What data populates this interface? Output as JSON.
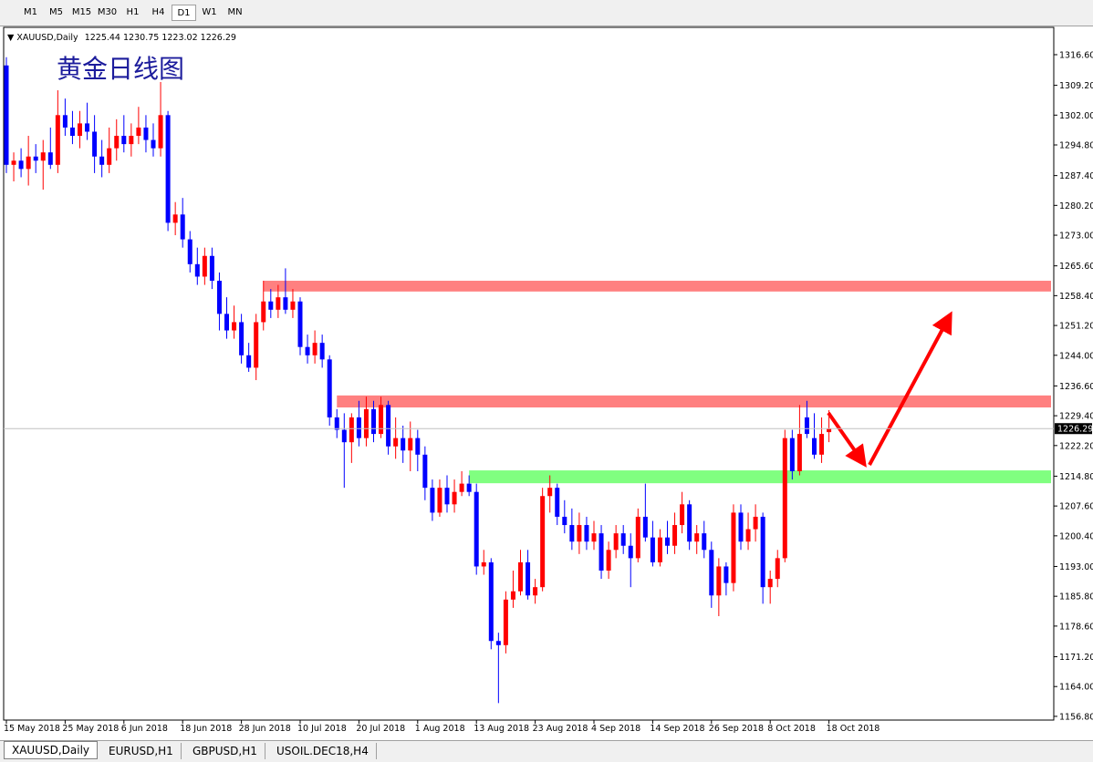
{
  "toolbar": {
    "timeframes": [
      "M1",
      "M5",
      "M15",
      "M30",
      "H1",
      "H4",
      "D1",
      "W1",
      "MN"
    ],
    "selected": 6
  },
  "tabs": {
    "items": [
      "XAUUSD,Daily",
      "EURUSD,H1",
      "GBPUSD,H1",
      "USOIL.DEC18,H4"
    ],
    "selected": 0
  },
  "chart_data": {
    "type": "candlestick",
    "title": "XAUUSD,Daily",
    "annotation": "黄金日线图",
    "up_color": "#ff0000",
    "down_color": "#0000ff",
    "ylim": [
      1155.9,
      1323.2
    ],
    "yticks": [
      {
        "value": 1316.6,
        "label": "1316.60"
      },
      {
        "value": 1309.2,
        "label": "1309.20"
      },
      {
        "value": 1302,
        "label": "1302.00"
      },
      {
        "value": 1294.8,
        "label": "1294.80"
      },
      {
        "value": 1287.4,
        "label": "1287.40"
      },
      {
        "value": 1280.2,
        "label": "1280.20"
      },
      {
        "value": 1273,
        "label": "1273.00"
      },
      {
        "value": 1265.6,
        "label": "1265.60"
      },
      {
        "value": 1258.4,
        "label": "1258.40"
      },
      {
        "value": 1251.2,
        "label": "1251.20"
      },
      {
        "value": 1244,
        "label": "1244.00"
      },
      {
        "value": 1236.6,
        "label": "1236.60"
      },
      {
        "value": 1229.4,
        "label": "1229.40"
      },
      {
        "value": 1222.2,
        "label": "1222.20"
      },
      {
        "value": 1214.8,
        "label": "1214.80"
      },
      {
        "value": 1207.6,
        "label": "1207.60"
      },
      {
        "value": 1200.4,
        "label": "1200.40"
      },
      {
        "value": 1193,
        "label": "1193.00"
      },
      {
        "value": 1185.8,
        "label": "1185.80"
      },
      {
        "value": 1178.6,
        "label": "1178.60"
      },
      {
        "value": 1171.2,
        "label": "1171.20"
      },
      {
        "value": 1164,
        "label": "1164.00"
      },
      {
        "value": 1156.8,
        "label": "1156.80"
      }
    ],
    "categories": [
      "15 May 2018",
      null,
      null,
      null,
      null,
      null,
      null,
      null,
      "25 May 2018",
      null,
      null,
      null,
      null,
      null,
      null,
      null,
      "6 Jun 2018",
      null,
      null,
      null,
      null,
      null,
      null,
      null,
      "18 Jun 2018",
      null,
      null,
      null,
      null,
      null,
      null,
      null,
      "28 Jun 2018",
      null,
      null,
      null,
      null,
      null,
      null,
      null,
      "10 Jul 2018",
      null,
      null,
      null,
      null,
      null,
      null,
      null,
      "20 Jul 2018",
      null,
      null,
      null,
      null,
      null,
      null,
      null,
      "1 Aug 2018",
      null,
      null,
      null,
      null,
      null,
      null,
      null,
      "13 Aug 2018",
      null,
      null,
      null,
      null,
      null,
      null,
      null,
      "23 Aug 2018",
      null,
      null,
      null,
      null,
      null,
      null,
      null,
      "4 Sep 2018",
      null,
      null,
      null,
      null,
      null,
      null,
      null,
      "14 Sep 2018",
      null,
      null,
      null,
      null,
      null,
      null,
      null,
      "26 Sep 2018",
      null,
      null,
      null,
      null,
      null,
      null,
      null,
      "8 Oct 2018",
      null,
      null,
      null,
      null,
      null,
      null,
      null,
      "18 Oct 2018"
    ],
    "open": [
      1314,
      1290,
      1291,
      1289,
      1292,
      1291,
      1293,
      1290,
      1302,
      1299,
      1297,
      1300,
      1298,
      1292,
      1290,
      1294,
      1297,
      1295,
      1297,
      1299,
      1296,
      1294,
      1302,
      1276,
      1278,
      1272,
      1266,
      1263,
      1268,
      1262,
      1254,
      1250,
      1252,
      1244,
      1241,
      1252,
      1257,
      1255,
      1258,
      1255,
      1257,
      1246,
      1244,
      1247,
      1243,
      1229,
      1226,
      1223,
      1229,
      1224,
      1231,
      1225,
      1232,
      1222,
      1224,
      1221,
      1224,
      1220,
      1212,
      1206,
      1212,
      1208,
      1211,
      1213,
      1211,
      1193,
      1194,
      1175,
      1174,
      1185,
      1187,
      1194,
      1186,
      1188,
      1210,
      1212,
      1205,
      1203,
      1199,
      1203,
      1199,
      1201,
      1192,
      1197,
      1201,
      1198,
      1195,
      1205,
      1200,
      1194,
      1200,
      1198,
      1203,
      1208,
      1199,
      1201,
      1197,
      1186,
      1193,
      1189,
      1206,
      1199,
      1202,
      1205,
      1188,
      1190,
      1195,
      1224,
      1216,
      1229,
      1224,
      1220,
      1225.44
    ],
    "high": [
      1316,
      1293,
      1294,
      1297,
      1295,
      1296,
      1299,
      1308,
      1306,
      1303,
      1303,
      1305,
      1302,
      1296,
      1299,
      1301,
      1302,
      1300,
      1304,
      1302,
      1300,
      1310,
      1303,
      1281,
      1282,
      1274,
      1270,
      1270,
      1270,
      1264,
      1258,
      1256,
      1254,
      1247,
      1254,
      1262,
      1260,
      1261,
      1265,
      1260,
      1258,
      1249,
      1250,
      1249,
      1244,
      1231,
      1230,
      1230,
      1233,
      1234,
      1233,
      1234,
      1233,
      1229,
      1227,
      1228,
      1226,
      1222,
      1214,
      1214,
      1215,
      1214,
      1216,
      1215,
      1213,
      1197,
      1195,
      1177,
      1187,
      1192,
      1197,
      1197,
      1190,
      1212,
      1215,
      1213,
      1209,
      1207,
      1206,
      1205,
      1204,
      1203,
      1199,
      1203,
      1203,
      1201,
      1207,
      1213,
      1204,
      1202,
      1204,
      1206,
      1211,
      1209,
      1203,
      1204,
      1199,
      1195,
      1194,
      1208,
      1208,
      1206,
      1208,
      1206,
      1192,
      1197,
      1226,
      1226,
      1232,
      1233,
      1230,
      1229,
      1230.75
    ],
    "low": [
      1288,
      1286,
      1287,
      1285,
      1288,
      1284,
      1289,
      1288,
      1297,
      1295,
      1294,
      1296,
      1288,
      1287,
      1288,
      1291,
      1293,
      1292,
      1295,
      1293,
      1292,
      1292,
      1274,
      1273,
      1270,
      1264,
      1261,
      1261,
      1260,
      1250,
      1248,
      1248,
      1242,
      1240,
      1238,
      1250,
      1253,
      1253,
      1254,
      1253,
      1244,
      1242,
      1242,
      1241,
      1227,
      1224,
      1212,
      1218,
      1222,
      1222,
      1223,
      1224,
      1220,
      1219,
      1218,
      1216,
      1216,
      1209,
      1204,
      1205,
      1206,
      1206,
      1210,
      1210,
      1191,
      1191,
      1173,
      1160,
      1172,
      1183,
      1186,
      1185,
      1184,
      1187,
      1206,
      1203,
      1201,
      1197,
      1196,
      1197,
      1197,
      1190,
      1190,
      1195,
      1196,
      1188,
      1194,
      1199,
      1193,
      1193,
      1196,
      1196,
      1201,
      1197,
      1196,
      1195,
      1183,
      1181,
      1186,
      1187,
      1197,
      1197,
      1199,
      1184,
      1184,
      1188,
      1194,
      1214,
      1215,
      1224,
      1219,
      1218,
      1223.02
    ],
    "close": [
      1290,
      1291,
      1289,
      1292,
      1291,
      1293,
      1290,
      1302,
      1299,
      1297,
      1300,
      1298,
      1292,
      1290,
      1294,
      1297,
      1295,
      1297,
      1299,
      1296,
      1294,
      1302,
      1276,
      1278,
      1272,
      1266,
      1263,
      1268,
      1262,
      1254,
      1250,
      1252,
      1244,
      1241,
      1252,
      1257,
      1255,
      1258,
      1255,
      1257,
      1246,
      1244,
      1247,
      1243,
      1229,
      1226,
      1223,
      1229,
      1224,
      1231,
      1225,
      1232,
      1222,
      1224,
      1221,
      1224,
      1220,
      1212,
      1206,
      1212,
      1208,
      1211,
      1213,
      1211,
      1193,
      1194,
      1175,
      1174,
      1185,
      1187,
      1194,
      1186,
      1188,
      1210,
      1212,
      1205,
      1203,
      1199,
      1203,
      1199,
      1201,
      1192,
      1197,
      1201,
      1198,
      1195,
      1205,
      1200,
      1194,
      1200,
      1198,
      1203,
      1208,
      1199,
      1201,
      1197,
      1186,
      1193,
      1189,
      1206,
      1199,
      1202,
      1205,
      1188,
      1190,
      1195,
      1224,
      1216,
      1225,
      1225,
      1220,
      1225,
      1226.29
    ],
    "zones": [
      {
        "low": 1259.4,
        "high": 1262.0,
        "from": 35,
        "color": "#ff8080"
      },
      {
        "low": 1231.4,
        "high": 1234.3,
        "from": 45,
        "color": "#ff8080"
      },
      {
        "low": 1213.1,
        "high": 1216.2,
        "from": 63,
        "color": "#80ff80"
      }
    ],
    "grid": false
  }
}
